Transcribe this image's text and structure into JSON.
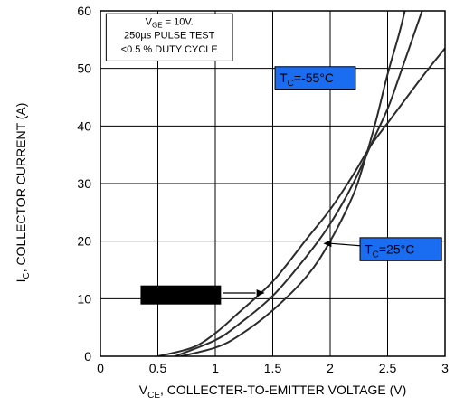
{
  "chart_data": {
    "type": "line",
    "title": "",
    "xlabel": {
      "main": "V",
      "sub": "CE",
      "rest": ", COLLECTER-TO-EMITTER VOLTAGE (V)"
    },
    "ylabel": {
      "main": "I",
      "sub": "C",
      "rest": ", COLLECTOR CURRENT (A)"
    },
    "xlim": [
      0,
      3
    ],
    "ylim": [
      0,
      60
    ],
    "xticks": [
      0,
      0.5,
      1,
      1.5,
      2,
      2.5,
      3
    ],
    "xtick_labels": [
      "0",
      "0.5",
      "1",
      "1.5",
      "2",
      "2.5",
      "3"
    ],
    "yticks": [
      0,
      10,
      20,
      30,
      40,
      50,
      60
    ],
    "ytick_labels": [
      "0",
      "10",
      "20",
      "30",
      "40",
      "50",
      "60"
    ],
    "grid": true,
    "conditions": {
      "line1": {
        "main": "V",
        "sub": "GE",
        "rest": " = 10V."
      },
      "line2": "250µs PULSE TEST",
      "line3": "<0.5 % DUTY CYCLE"
    },
    "colors": {
      "curve": "#2b2b2b",
      "label_fill": "#1a6cf0",
      "redaction": "#000000"
    },
    "series": [
      {
        "label": {
          "main": "T",
          "sub": "C",
          "rest": "=-55°C"
        },
        "points": [
          [
            0.7,
            0
          ],
          [
            1.0,
            1.5
          ],
          [
            1.2,
            3.5
          ],
          [
            1.5,
            8.0
          ],
          [
            1.8,
            14.0
          ],
          [
            2.0,
            20.0
          ],
          [
            2.2,
            28.0
          ],
          [
            2.3,
            34.0
          ],
          [
            2.4,
            41.0
          ],
          [
            2.5,
            49.0
          ],
          [
            2.6,
            56.0
          ],
          [
            2.65,
            60.0
          ]
        ]
      },
      {
        "label": {
          "main": "T",
          "sub": "C",
          "rest": "=25°C"
        },
        "points": [
          [
            0.65,
            0
          ],
          [
            1.0,
            2.8
          ],
          [
            1.2,
            5.5
          ],
          [
            1.5,
            10.5
          ],
          [
            1.8,
            17.5
          ],
          [
            2.0,
            23.0
          ],
          [
            2.2,
            30.0
          ],
          [
            2.35,
            36.5
          ],
          [
            2.5,
            43.0
          ],
          [
            2.6,
            48.5
          ],
          [
            2.8,
            60.0
          ]
        ]
      },
      {
        "label": null,
        "points": [
          [
            0.5,
            0
          ],
          [
            0.8,
            1.5
          ],
          [
            1.0,
            4.0
          ],
          [
            1.2,
            7.5
          ],
          [
            1.5,
            13.0
          ],
          [
            1.8,
            20.5
          ],
          [
            2.0,
            25.5
          ],
          [
            2.2,
            31.5
          ],
          [
            2.35,
            36.5
          ],
          [
            2.5,
            40.5
          ],
          [
            2.8,
            48.5
          ],
          [
            3.0,
            53.5
          ]
        ]
      }
    ]
  }
}
